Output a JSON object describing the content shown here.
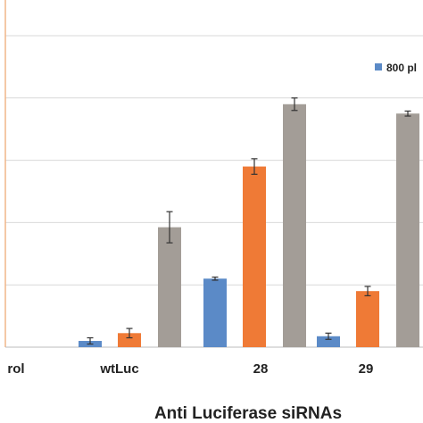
{
  "chart_data": {
    "type": "bar",
    "categories": [
      "rol",
      "wtLuc",
      "28",
      "29"
    ],
    "xlabel": "Anti Luciferase siRNAs",
    "ylim": [
      0,
      100
    ],
    "grid": true,
    "legend_position": "top-right",
    "legend": [
      "800 pl"
    ],
    "series": [
      {
        "name": "800 pl",
        "color": "#5b8ac7",
        "values": [
          0,
          2,
          22,
          3.5
        ],
        "errors": [
          0,
          1,
          0.5,
          1
        ]
      },
      {
        "color": "#ef7a36",
        "values": [
          0,
          4.5,
          58,
          18
        ],
        "errors": [
          0,
          1.5,
          2.5,
          1.5
        ]
      },
      {
        "color": "#a39d97",
        "values": [
          0,
          38.5,
          78,
          75
        ],
        "errors": [
          0,
          5,
          2,
          0.8
        ]
      }
    ]
  }
}
